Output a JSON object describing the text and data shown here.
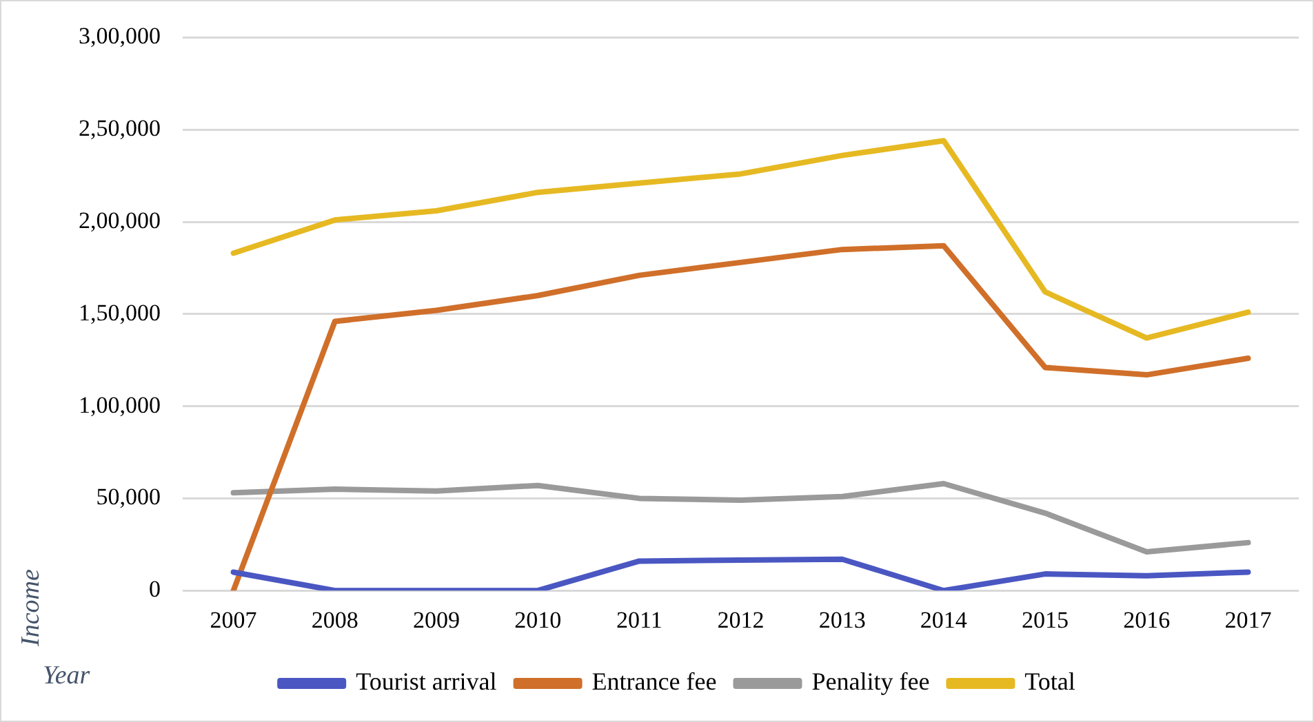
{
  "chart_data": {
    "type": "line",
    "xlabel": "Year",
    "ylabel": "Income",
    "categories": [
      "2007",
      "2008",
      "2009",
      "2010",
      "2011",
      "2012",
      "2013",
      "2014",
      "2015",
      "2016",
      "2017"
    ],
    "series": [
      {
        "name": "Tourist arrival",
        "color": "#4a57c2",
        "values": [
          10000,
          0,
          0,
          0,
          16000,
          16500,
          17000,
          0,
          9000,
          8000,
          10000
        ]
      },
      {
        "name": "Entrance fee",
        "color": "#d06f2a",
        "values": [
          0,
          146000,
          152000,
          160000,
          171000,
          178000,
          185000,
          187000,
          121000,
          117000,
          126000
        ]
      },
      {
        "name": "Penality fee",
        "color": "#9a9a9a",
        "values": [
          53000,
          55000,
          54000,
          57000,
          50000,
          49000,
          51000,
          58000,
          42000,
          21000,
          26000
        ]
      },
      {
        "name": "Total",
        "color": "#e6b923",
        "values": [
          183000,
          201000,
          206000,
          216000,
          221000,
          226000,
          236000,
          244000,
          162000,
          137000,
          151000
        ]
      }
    ],
    "ylim": [
      0,
      300000
    ],
    "yticks": [
      {
        "value": 0,
        "label": "0"
      },
      {
        "value": 50000,
        "label": "50,000"
      },
      {
        "value": 100000,
        "label": "1,00,000"
      },
      {
        "value": 150000,
        "label": "1,50,000"
      },
      {
        "value": 200000,
        "label": "2,00,000"
      },
      {
        "value": 250000,
        "label": "2,50,000"
      },
      {
        "value": 300000,
        "label": "3,00,000"
      }
    ],
    "grid": "y",
    "legend": "bottom",
    "marker": "none",
    "line_style": "solid"
  }
}
